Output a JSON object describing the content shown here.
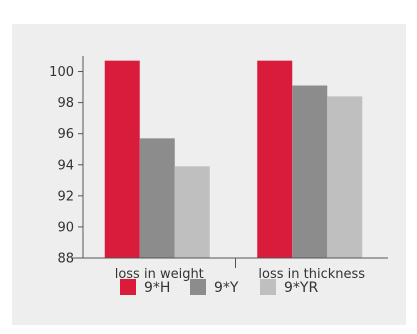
{
  "chart_data": {
    "type": "bar",
    "categories": [
      "loss in weight",
      "loss in thickness"
    ],
    "series": [
      {
        "name": "9*H",
        "values": [
          100.7,
          100.7
        ],
        "color": "#d91c3c"
      },
      {
        "name": "9*Y",
        "values": [
          95.7,
          99.1
        ],
        "color": "#8c8c8c"
      },
      {
        "name": "9*YR",
        "values": [
          93.9,
          98.4
        ],
        "color": "#bfbfbf"
      }
    ],
    "ylim": [
      88,
      101
    ],
    "yticks": [
      88,
      90,
      92,
      94,
      96,
      98,
      100
    ],
    "title": "",
    "xlabel": "",
    "ylabel": "",
    "grid": false,
    "legend_position": "bottom"
  }
}
